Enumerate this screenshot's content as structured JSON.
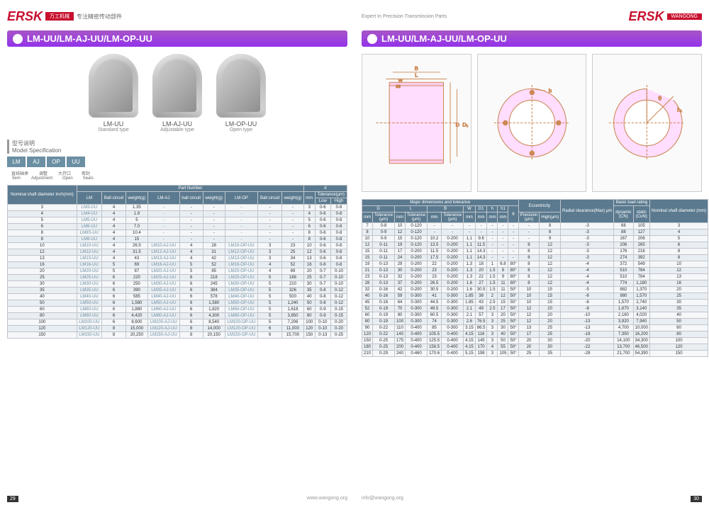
{
  "brand": "ERSK",
  "brand_cn": "万工机械",
  "brand_sub": "WANGONG",
  "brand_tag": "专注精密传动部件",
  "tagline": "Expert In Precision Transmission Parts",
  "section_title": "LM-UU/LM-AJ-UU/LM-OP-UU",
  "products": [
    {
      "name": "LM-UU",
      "sub": "Standard type"
    },
    {
      "name": "LM-AJ-UU",
      "sub": "Adjustable type"
    },
    {
      "name": "LM-OP-UU",
      "sub": "Open type"
    }
  ],
  "model_spec_label_cn": "型号说明",
  "model_spec_label_en": "Model Specification",
  "spec_boxes": [
    "LM",
    "AJ",
    "OP",
    "UU"
  ],
  "spec_subs_cn": [
    "直线轴承",
    "调整",
    "大开口",
    "密封"
  ],
  "spec_subs_en": [
    "Item",
    "Adjustment",
    "Open",
    "Seals"
  ],
  "table1": {
    "top_headers": [
      "Nominal shaft diameter Inch(mm)",
      "Part Number",
      "d"
    ],
    "sub_headers": [
      "LM",
      "Ball circuit",
      "weight(g)",
      "LM-AJ",
      "ball circuit",
      "weight(g)",
      "LM-OP",
      "Ball circuit",
      "weight(g)",
      "mm",
      "Tolerance(μm)"
    ],
    "tol_sub": [
      "Low",
      "High"
    ],
    "rows": [
      [
        "3",
        "LM3-UU",
        "4",
        "1.35",
        "-",
        "-",
        "-",
        "-",
        "-",
        "-",
        "3",
        "0-6",
        "0-8"
      ],
      [
        "4",
        "LM4-UU",
        "4",
        "1.9",
        "-",
        "-",
        "-",
        "-",
        "-",
        "-",
        "4",
        "0-6",
        "0-8"
      ],
      [
        "5",
        "LM5-UU",
        "4",
        "5",
        "-",
        "-",
        "-",
        "-",
        "-",
        "-",
        "5",
        "0-6",
        "0-8"
      ],
      [
        "6",
        "LM6-UU",
        "4",
        "7.0",
        "-",
        "-",
        "-",
        "-",
        "-",
        "-",
        "6",
        "0-6",
        "0-8"
      ],
      [
        "8",
        "LM8S-UU",
        "4",
        "10.4",
        "-",
        "-",
        "-",
        "-",
        "-",
        "-",
        "8",
        "0-6",
        "0-8"
      ],
      [
        "8",
        "LM8-UU",
        "4",
        "15",
        "-",
        "-",
        "-",
        "-",
        "-",
        "-",
        "8",
        "0-6",
        "0-8"
      ],
      [
        "10",
        "LM10-UU",
        "4",
        "26.5",
        "LM10-AJ-UU",
        "4",
        "28",
        "LM10-OP-UU",
        "3",
        "23",
        "10",
        "0-6",
        "0-8"
      ],
      [
        "12",
        "LM12-UU",
        "4",
        "31.5",
        "LM12-AJ-UU",
        "4",
        "31",
        "LM12-OP-UU",
        "3",
        "25",
        "12",
        "0-6",
        "0-8"
      ],
      [
        "13",
        "LM13-UU",
        "4",
        "43",
        "LM13-AJ-UU",
        "4",
        "42",
        "LM13-OP-UU",
        "3",
        "34",
        "13",
        "0-6",
        "0-8"
      ],
      [
        "16",
        "LM16-UU",
        "5",
        "69",
        "LM16-AJ-UU",
        "5",
        "52",
        "LM16-OP-UU",
        "4",
        "52",
        "16",
        "0-6",
        "0-8"
      ],
      [
        "20",
        "LM20-UU",
        "5",
        "87",
        "LM20-AJ-UU",
        "5",
        "85",
        "LM20-OP-UU",
        "4",
        "69",
        "20",
        "0-7",
        "0-10"
      ],
      [
        "25",
        "LM25-UU",
        "6",
        "220",
        "LM25-AJ-UU",
        "6",
        "218",
        "LM25-OP-UU",
        "5",
        "188",
        "25",
        "0-7",
        "0-10"
      ],
      [
        "30",
        "LM30-UU",
        "6",
        "250",
        "LM30-AJ-UU",
        "6",
        "245",
        "LM30-OP-UU",
        "5",
        "210",
        "30",
        "0-7",
        "0-10"
      ],
      [
        "35",
        "LM35-UU",
        "6",
        "390",
        "LM35-AJ-UU",
        "6",
        "384",
        "LM35-OP-UU",
        "5",
        "326",
        "35",
        "0-8",
        "0-12"
      ],
      [
        "40",
        "LM40-UU",
        "6",
        "585",
        "LM40-AJ-UU",
        "6",
        "578",
        "LM40-OP-UU",
        "5",
        "500",
        "40",
        "0-8",
        "0-12"
      ],
      [
        "50",
        "LM50-UU",
        "6",
        "1,580",
        "LM50-AJ-UU",
        "6",
        "1,580",
        "LM50-OP-UU",
        "5",
        "1,240",
        "50",
        "0-8",
        "0-12"
      ],
      [
        "60",
        "LM60-UU",
        "6",
        "1,880",
        "LM60-AJ-UU",
        "6",
        "1,820",
        "LM60-OP-UU",
        "5",
        "1,618",
        "60",
        "0-9",
        "0-15"
      ],
      [
        "80",
        "LM80-UU",
        "6",
        "4,420",
        "LM80-AJ-UU",
        "6",
        "4,300",
        "LM80-OP-UU",
        "5",
        "3,850",
        "80",
        "0-9",
        "0-15"
      ],
      [
        "100",
        "LM100-UU",
        "6",
        "8,600",
        "LM100-AJ-UU",
        "6",
        "8,540",
        "LM100-OP-UU",
        "5",
        "7,206",
        "100",
        "0-10",
        "0-20"
      ],
      [
        "120",
        "LM120-UU",
        "8",
        "15,000",
        "LM120-AJ-UU",
        "8",
        "14,000",
        "LM120-OP-UU",
        "6",
        "11,000",
        "120",
        "0-10",
        "0-20"
      ],
      [
        "150",
        "LM150-UU",
        "8",
        "20,250",
        "LM150-AJ-UU",
        "8",
        "20,150",
        "LM150-OP-UU",
        "6",
        "15,700",
        "150",
        "0-13",
        "0-25"
      ]
    ]
  },
  "table2": {
    "group_headers": [
      "Major dimensions and tolerance",
      "Eccentricity",
      "Radial clearance(Max) μm",
      "Basic load rating",
      "Nominal shaft diameter (mm)"
    ],
    "mid_headers": [
      "D",
      "L",
      "B",
      "W",
      "D1",
      "h",
      "h1",
      "θ",
      "",
      "",
      "dynamic (CN)",
      "static (CoN)",
      ""
    ],
    "sub_headers": [
      "mm",
      "Tolerance (μm)",
      "mm",
      "Tolerance (μm)",
      "mm",
      "Tolerance (μm)",
      "mm",
      "mm",
      "mm",
      "mm",
      "",
      "Precision (μm)",
      "High(μm)",
      "",
      "",
      "",
      ""
    ],
    "rows": [
      [
        "7",
        "0-8",
        "10",
        "0-120",
        "-",
        "-",
        "-",
        "-",
        "-",
        "-",
        "-",
        "-",
        "8",
        "-3",
        "68",
        "105",
        "3"
      ],
      [
        "8",
        "0-9",
        "12",
        "0-120",
        "-",
        "-",
        "-",
        "-",
        "-",
        "-",
        "-",
        "-",
        "8",
        "-3",
        "88",
        "127",
        "4"
      ],
      [
        "10",
        "0-9",
        "15",
        "0-120",
        "10.2",
        "0-200",
        "1.1",
        "9.6",
        "-",
        "-",
        "-",
        "-",
        "9",
        "-3",
        "167",
        "206",
        "5"
      ],
      [
        "12",
        "0-11",
        "19",
        "0-120",
        "13.5",
        "0-200",
        "1.1",
        "11.5",
        "-",
        "-",
        "-",
        "8",
        "12",
        "-3",
        "206",
        "265",
        "6"
      ],
      [
        "15",
        "0-11",
        "17",
        "0-200",
        "11.5",
        "0-200",
        "1.1",
        "14.3",
        "-",
        "-",
        "-",
        "8",
        "12",
        "-3",
        "176",
        "216",
        "8"
      ],
      [
        "15",
        "0-11",
        "24",
        "0-200",
        "17.5",
        "0-200",
        "1.1",
        "14.3",
        "-",
        "-",
        "-",
        "8",
        "12",
        "-3",
        "274",
        "392",
        "8"
      ],
      [
        "19",
        "0-13",
        "29",
        "0-200",
        "22",
        "0-200",
        "1.3",
        "18",
        "1",
        "6.8",
        "80°",
        "8",
        "12",
        "-4",
        "372",
        "549",
        "10"
      ],
      [
        "21",
        "0-13",
        "30",
        "0-200",
        "23",
        "0-200",
        "1.3",
        "20",
        "1.5",
        "8",
        "80°",
        "8",
        "12",
        "-4",
        "510",
        "784",
        "12"
      ],
      [
        "23",
        "0-13",
        "32",
        "0-200",
        "23",
        "0-200",
        "1.3",
        "22",
        "1.5",
        "9",
        "80°",
        "8",
        "12",
        "-4",
        "510",
        "784",
        "13"
      ],
      [
        "28",
        "0-13",
        "37",
        "0-200",
        "26.5",
        "0-200",
        "1.6",
        "27",
        "1.5",
        "11",
        "80°",
        "8",
        "12",
        "-4",
        "774",
        "1,180",
        "16"
      ],
      [
        "32",
        "0-16",
        "42",
        "0-200",
        "30.5",
        "0-200",
        "1.6",
        "30.5",
        "1.5",
        "11",
        "50°",
        "10",
        "15",
        "-5",
        "882",
        "1,370",
        "20"
      ],
      [
        "40",
        "0-16",
        "59",
        "0-300",
        "41",
        "0-300",
        "1.85",
        "38",
        "2",
        "12",
        "50°",
        "10",
        "15",
        "-6",
        "980",
        "1,570",
        "25"
      ],
      [
        "45",
        "0-16",
        "64",
        "0-300",
        "44.5",
        "0-300",
        "1.85",
        "43",
        "2.5",
        "15",
        "50°",
        "10",
        "15",
        "-6",
        "1,570",
        "2,740",
        "30"
      ],
      [
        "52",
        "0-19",
        "70",
        "0-300",
        "49.5",
        "0-300",
        "2.1",
        "49",
        "2.5",
        "17",
        "50°",
        "12",
        "20",
        "-8",
        "1,670",
        "3,140",
        "35"
      ],
      [
        "60",
        "0-19",
        "80",
        "0-300",
        "60.5",
        "0-300",
        "2.1",
        "57",
        "3",
        "20",
        "50°",
        "12",
        "20",
        "-10",
        "2,160",
        "4,020",
        "40"
      ],
      [
        "80",
        "0-19",
        "100",
        "0-300",
        "74",
        "0-300",
        "2.6",
        "76.5",
        "3",
        "25",
        "50°",
        "12",
        "20",
        "-13",
        "3,920",
        "7,940",
        "50"
      ],
      [
        "90",
        "0-22",
        "110",
        "0-400",
        "85",
        "0-300",
        "3.15",
        "86.5",
        "3",
        "30",
        "50°",
        "13",
        "25",
        "-13",
        "4,700",
        "10,000",
        "60"
      ],
      [
        "120",
        "0-22",
        "140",
        "0-400",
        "105.5",
        "0-400",
        "4.15",
        "116",
        "3",
        "40",
        "50°",
        "17",
        "25",
        "-18",
        "7,350",
        "16,200",
        "80"
      ],
      [
        "150",
        "0-25",
        "175",
        "0-400",
        "125.5",
        "0-400",
        "4.15",
        "145",
        "3",
        "50",
        "50°",
        "20",
        "30",
        "-20",
        "14,100",
        "34,300",
        "100"
      ],
      [
        "180",
        "0-25",
        "200",
        "0-400",
        "158.5",
        "0-400",
        "4.15",
        "170",
        "4",
        "55",
        "50°",
        "20",
        "30",
        "-22",
        "13,700",
        "46,500",
        "120"
      ],
      [
        "210",
        "0-29",
        "240",
        "0-460",
        "170.6",
        "0-400",
        "5.15",
        "198",
        "3",
        "105",
        "50°",
        "25",
        "35",
        "-28",
        "21,700",
        "54,390",
        "150"
      ]
    ]
  },
  "page_left": "29",
  "page_right": "30",
  "footer_url": "www.wangong.org",
  "footer_email": "info@wangong.org",
  "colors": {
    "brand": "#c8102e",
    "header_grad1": "#a855c7",
    "header_grad2": "#9333ea",
    "th_bg": "#5b7a8f",
    "box_bg": "#6b8fa3"
  }
}
